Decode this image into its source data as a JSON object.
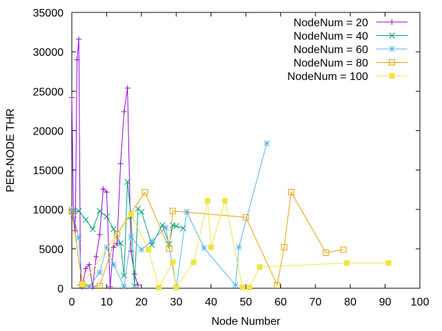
{
  "chart_data": {
    "type": "line",
    "xlabel": "Node Number",
    "ylabel": "PER-NODE THR",
    "xlim": [
      0,
      100
    ],
    "ylim": [
      0,
      35000
    ],
    "xticks": [
      0,
      10,
      20,
      30,
      40,
      50,
      60,
      70,
      80,
      90,
      100
    ],
    "yticks": [
      0,
      5000,
      10000,
      15000,
      20000,
      25000,
      30000,
      35000
    ],
    "grid": false,
    "legend_position": "top-right",
    "series": [
      {
        "name": "NodeNum = 20",
        "color": "#9400d3",
        "marker": "plus",
        "x": [
          0,
          0.5,
          1,
          1.5,
          2,
          2.5,
          3,
          4,
          5,
          6,
          7,
          8,
          9,
          10,
          11,
          12,
          13,
          14,
          15,
          16,
          17,
          18,
          19
        ],
        "y": [
          24200,
          9000,
          7300,
          29000,
          31600,
          400,
          200,
          2500,
          3000,
          200,
          4000,
          6800,
          12600,
          12200,
          200,
          5200,
          5700,
          15800,
          22400,
          25400,
          4700,
          1800,
          400
        ]
      },
      {
        "name": "NodeNum = 40",
        "color": "#009e73",
        "marker": "x",
        "x": [
          0,
          2,
          4,
          6,
          8,
          10,
          12,
          14,
          15,
          16,
          17,
          18,
          19,
          20,
          23,
          26,
          28,
          29,
          30,
          32
        ],
        "y": [
          9700,
          9800,
          8700,
          7500,
          9800,
          9100,
          7500,
          5700,
          1600,
          13500,
          9100,
          300,
          10100,
          9700,
          5500,
          8000,
          5600,
          8000,
          7900,
          7600
        ]
      },
      {
        "name": "NodeNum = 60",
        "color": "#56b4e9",
        "marker": "star",
        "x": [
          0,
          2,
          3,
          5,
          8,
          10,
          12,
          15,
          17,
          20,
          23,
          27,
          30,
          33,
          38,
          47,
          48,
          56
        ],
        "y": [
          10000,
          6400,
          400,
          200,
          2000,
          5200,
          3000,
          200,
          6500,
          4900,
          6000,
          7700,
          100,
          9700,
          5100,
          400,
          5200,
          18400
        ]
      },
      {
        "name": "NodeNum = 80",
        "color": "#e69f00",
        "marker": "square-open",
        "x": [
          0,
          3,
          8,
          13,
          21,
          28,
          29,
          50,
          59,
          61,
          63,
          73,
          78
        ],
        "y": [
          9800,
          500,
          300,
          6900,
          12200,
          5000,
          9800,
          9000,
          400,
          5200,
          12200,
          4500,
          4900
        ]
      },
      {
        "name": "NodeNum = 100",
        "color": "#f0e442",
        "marker": "square-filled",
        "x": [
          3,
          17,
          22,
          25,
          29,
          30,
          35,
          39,
          40,
          44,
          49,
          51,
          54,
          79,
          91
        ],
        "y": [
          500,
          9400,
          4900,
          100,
          3300,
          100,
          3300,
          11100,
          5200,
          11100,
          100,
          100,
          2700,
          3200,
          3200
        ]
      }
    ]
  }
}
